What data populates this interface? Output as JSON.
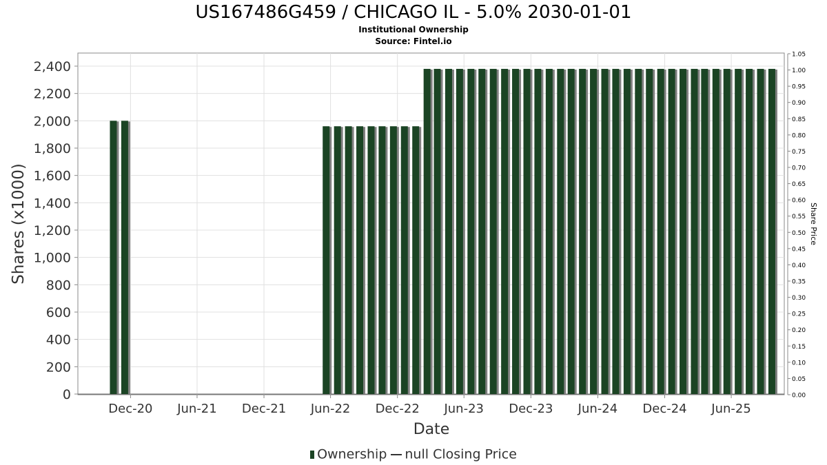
{
  "header": {
    "title": "US167486G459 / CHICAGO IL - 5.0% 2030-01-01",
    "subtitle_1": "Institutional Ownership",
    "subtitle_2": "Source: Fintel.io"
  },
  "legend": {
    "ownership_label": "Ownership",
    "price_label": "null Closing Price"
  },
  "chart_data": {
    "type": "bar",
    "xlabel": "Date",
    "ylabel": "Shares (x1000)",
    "y2label": "Share Price",
    "ylim": [
      0,
      2500
    ],
    "y2lim": [
      0,
      1.05
    ],
    "yticks": [
      "0",
      "200",
      "400",
      "600",
      "800",
      "1,000",
      "1,200",
      "1,400",
      "1,600",
      "1,800",
      "2,000",
      "2,200",
      "2,400"
    ],
    "y2ticks": [
      "0.00",
      "0.05",
      "0.10",
      "0.15",
      "0.20",
      "0.25",
      "0.30",
      "0.35",
      "0.40",
      "0.45",
      "0.50",
      "0.55",
      "0.60",
      "0.65",
      "0.70",
      "0.75",
      "0.80",
      "0.85",
      "0.90",
      "0.95",
      "1.00",
      "1.05"
    ],
    "xticks": [
      {
        "label": "Dec-20",
        "date": "2020-12-01"
      },
      {
        "label": "Jun-21",
        "date": "2021-06-01"
      },
      {
        "label": "Dec-21",
        "date": "2021-12-01"
      },
      {
        "label": "Jun-22",
        "date": "2022-06-01"
      },
      {
        "label": "Dec-22",
        "date": "2022-12-01"
      },
      {
        "label": "Jun-23",
        "date": "2023-06-01"
      },
      {
        "label": "Dec-23",
        "date": "2023-12-01"
      },
      {
        "label": "Jun-24",
        "date": "2024-06-01"
      },
      {
        "label": "Dec-24",
        "date": "2024-12-01"
      },
      {
        "label": "Jun-25",
        "date": "2025-06-01"
      }
    ],
    "xrange": [
      "2020-07-10",
      "2025-10-24"
    ],
    "grid": true,
    "legend_position": "bottom",
    "colors": {
      "bar": "#1b4424",
      "bar_shadow": "#808080",
      "grid": "#e0e0e0"
    },
    "series": [
      {
        "name": "Ownership",
        "points": [
          {
            "date": "2020-10-15",
            "value": 2000
          },
          {
            "date": "2020-11-15",
            "value": 2000
          },
          {
            "date": "2022-05-20",
            "value": 1960
          },
          {
            "date": "2022-06-20",
            "value": 1960
          },
          {
            "date": "2022-07-20",
            "value": 1960
          },
          {
            "date": "2022-08-20",
            "value": 1960
          },
          {
            "date": "2022-09-20",
            "value": 1960
          },
          {
            "date": "2022-10-20",
            "value": 1960
          },
          {
            "date": "2022-11-20",
            "value": 1960
          },
          {
            "date": "2022-12-20",
            "value": 1960
          },
          {
            "date": "2023-01-20",
            "value": 1960
          },
          {
            "date": "2023-02-20",
            "value": 2380
          },
          {
            "date": "2023-03-20",
            "value": 2380
          },
          {
            "date": "2023-04-20",
            "value": 2380
          },
          {
            "date": "2023-05-20",
            "value": 2380
          },
          {
            "date": "2023-06-20",
            "value": 2380
          },
          {
            "date": "2023-07-20",
            "value": 2380
          },
          {
            "date": "2023-08-20",
            "value": 2380
          },
          {
            "date": "2023-09-20",
            "value": 2380
          },
          {
            "date": "2023-10-20",
            "value": 2380
          },
          {
            "date": "2023-11-20",
            "value": 2380
          },
          {
            "date": "2023-12-20",
            "value": 2380
          },
          {
            "date": "2024-01-20",
            "value": 2380
          },
          {
            "date": "2024-02-20",
            "value": 2380
          },
          {
            "date": "2024-03-20",
            "value": 2380
          },
          {
            "date": "2024-04-20",
            "value": 2380
          },
          {
            "date": "2024-05-20",
            "value": 2380
          },
          {
            "date": "2024-06-20",
            "value": 2380
          },
          {
            "date": "2024-07-20",
            "value": 2380
          },
          {
            "date": "2024-08-20",
            "value": 2380
          },
          {
            "date": "2024-09-20",
            "value": 2380
          },
          {
            "date": "2024-10-20",
            "value": 2380
          },
          {
            "date": "2024-11-20",
            "value": 2380
          },
          {
            "date": "2024-12-20",
            "value": 2380
          },
          {
            "date": "2025-01-20",
            "value": 2380
          },
          {
            "date": "2025-02-20",
            "value": 2380
          },
          {
            "date": "2025-03-20",
            "value": 2380
          },
          {
            "date": "2025-04-20",
            "value": 2380
          },
          {
            "date": "2025-05-20",
            "value": 2380
          },
          {
            "date": "2025-06-20",
            "value": 2380
          },
          {
            "date": "2025-07-20",
            "value": 2380
          },
          {
            "date": "2025-08-20",
            "value": 2380
          },
          {
            "date": "2025-09-20",
            "value": 2380
          }
        ]
      }
    ]
  }
}
